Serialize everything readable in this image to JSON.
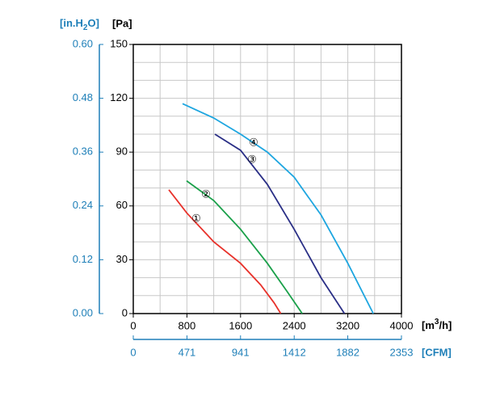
{
  "chart_data": {
    "type": "line",
    "x_unit": [
      "[m",
      "3",
      "/h]"
    ],
    "x2_unit": "[CFM]",
    "y_unit": "[Pa]",
    "y2_unit": [
      "[in.H",
      "2",
      "O]"
    ],
    "xlim": [
      0,
      4000
    ],
    "xticks": [
      0,
      800,
      1600,
      2400,
      3200,
      4000
    ],
    "x2lim": [
      0,
      2353
    ],
    "x2ticks": [
      0,
      471,
      941,
      1412,
      1882,
      2353
    ],
    "ylim": [
      0,
      150
    ],
    "yticks": [
      0,
      30,
      60,
      90,
      120,
      150
    ],
    "y2lim": [
      0,
      0.6
    ],
    "y2ticks": [
      {
        "value": 0,
        "label": "0.00"
      },
      {
        "value": 0.12,
        "label": "0.12"
      },
      {
        "value": 0.24,
        "label": "0.24"
      },
      {
        "value": 0.36,
        "label": "0.36"
      },
      {
        "value": 0.48,
        "label": "0.48"
      },
      {
        "value": 0.6,
        "label": "0.60"
      }
    ],
    "xgrid": [
      0,
      400,
      800,
      1200,
      1600,
      2000,
      2400,
      2800,
      3200,
      3600,
      4000
    ],
    "ygrid": [
      0,
      10,
      20,
      30,
      40,
      50,
      60,
      70,
      80,
      90,
      100,
      110,
      120,
      130,
      140,
      150
    ],
    "grid": true,
    "series": [
      {
        "name": "①",
        "color": "#e8322b",
        "x": [
          530,
          800,
          1200,
          1600,
          1900,
          2100,
          2200
        ],
        "values": [
          69,
          56,
          40,
          28,
          16,
          6,
          0
        ]
      },
      {
        "name": "②",
        "color": "#1aa04a",
        "x": [
          795,
          1200,
          1600,
          2000,
          2300,
          2520
        ],
        "values": [
          74,
          63,
          47,
          28,
          12,
          0
        ]
      },
      {
        "name": "③",
        "color": "#2a2f86",
        "x": [
          1217,
          1600,
          2000,
          2400,
          2800,
          3150
        ],
        "values": [
          100,
          91,
          72,
          47,
          20,
          0
        ]
      },
      {
        "name": "④",
        "color": "#1ea6e0",
        "x": [
          735,
          1200,
          1600,
          2000,
          2400,
          2800,
          3200,
          3580
        ],
        "values": [
          117,
          109,
          100,
          90,
          76,
          55,
          28,
          0
        ]
      }
    ]
  }
}
